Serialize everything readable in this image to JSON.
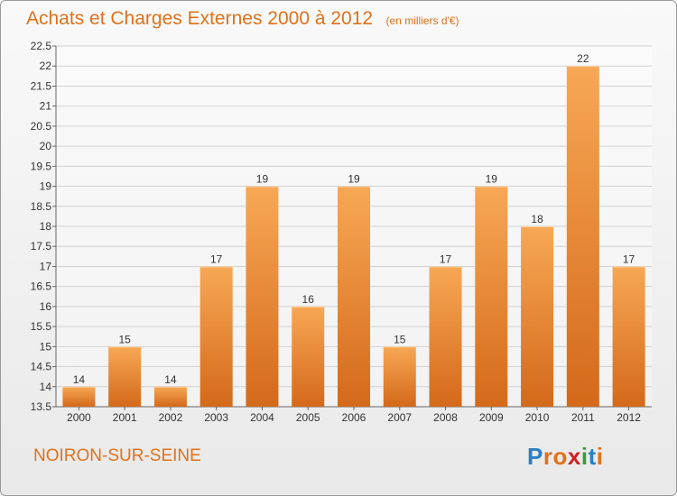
{
  "header": {
    "title": "Achats et Charges Externes 2000 à 2012",
    "unit": "(en milliers d'€)"
  },
  "footer": {
    "town": "NOIRON-SUR-SEINE",
    "logo": [
      "P",
      "r",
      "o",
      "x",
      "i",
      "t",
      "i"
    ],
    "logo_colors": [
      "#2a7fc4",
      "#e0711a",
      "#e0711a",
      "#cc2222",
      "#3a9a3a",
      "#2a7fc4",
      "#e0711a"
    ]
  },
  "chart_data": {
    "type": "bar",
    "categories": [
      "2000",
      "2001",
      "2002",
      "2003",
      "2004",
      "2005",
      "2006",
      "2007",
      "2008",
      "2009",
      "2010",
      "2011",
      "2012"
    ],
    "values": [
      14,
      15,
      14,
      17,
      19,
      16,
      19,
      15,
      17,
      19,
      18,
      22,
      17
    ],
    "data_labels": [
      "14",
      "15",
      "14",
      "17",
      "19",
      "16",
      "19",
      "15",
      "17",
      "19",
      "18",
      "22",
      "17"
    ],
    "title": "Achats et Charges Externes 2000 à 2012",
    "ylim": [
      13.5,
      22.5
    ],
    "yticks": [
      13.5,
      14,
      14.5,
      15,
      15.5,
      16,
      16.5,
      17,
      17.5,
      18,
      18.5,
      19,
      19.5,
      20,
      20.5,
      21,
      21.5,
      22,
      22.5
    ],
    "ytick_labels": [
      "13.5",
      "14",
      "14.5",
      "15",
      "15.5",
      "16",
      "16.5",
      "17",
      "17.5",
      "18",
      "18.5",
      "19",
      "19.5",
      "20",
      "20.5",
      "21",
      "21.5",
      "22",
      "22.5"
    ],
    "grid": true,
    "bar_color_top": "#f7a855",
    "bar_color_bottom": "#d4691a",
    "text_color": "#333333"
  }
}
